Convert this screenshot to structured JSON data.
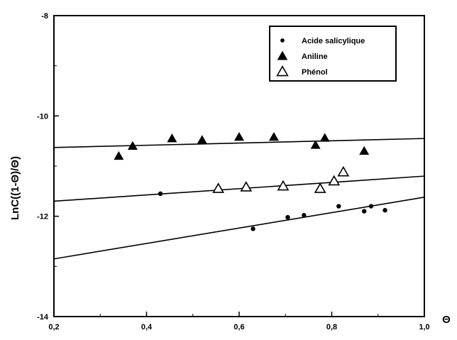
{
  "chart_data": {
    "type": "scatter",
    "xlabel": "Θ",
    "ylabel": "LnC((1-Θ)/Θ)",
    "xlim": [
      0.2,
      1.0
    ],
    "ylim": [
      -14,
      -8
    ],
    "xticks": [
      0.2,
      0.4,
      0.6,
      0.8,
      1.0
    ],
    "xtick_labels": [
      "0,2",
      "0,4",
      "0,6",
      "0,8",
      "1,0"
    ],
    "yticks": [
      -14,
      -12,
      -10,
      -8
    ],
    "ytick_labels": [
      "-14",
      "-12",
      "-10",
      "-8"
    ],
    "grid": false,
    "legend_position": "top-right",
    "series": [
      {
        "name": "Acide salicylique",
        "marker": "filled-circle",
        "points": [
          {
            "x": 0.43,
            "y": -11.55
          },
          {
            "x": 0.63,
            "y": -12.25
          },
          {
            "x": 0.705,
            "y": -12.02
          },
          {
            "x": 0.74,
            "y": -11.98
          },
          {
            "x": 0.815,
            "y": -11.8
          },
          {
            "x": 0.87,
            "y": -11.9
          },
          {
            "x": 0.885,
            "y": -11.8
          },
          {
            "x": 0.915,
            "y": -11.88
          }
        ],
        "fit": {
          "x0": 0.2,
          "y0": -12.85,
          "x1": 1.0,
          "y1": -11.62
        }
      },
      {
        "name": "Aniline",
        "marker": "filled-triangle",
        "points": [
          {
            "x": 0.34,
            "y": -10.8
          },
          {
            "x": 0.37,
            "y": -10.6
          },
          {
            "x": 0.455,
            "y": -10.45
          },
          {
            "x": 0.52,
            "y": -10.48
          },
          {
            "x": 0.6,
            "y": -10.42
          },
          {
            "x": 0.675,
            "y": -10.42
          },
          {
            "x": 0.765,
            "y": -10.58
          },
          {
            "x": 0.785,
            "y": -10.44
          },
          {
            "x": 0.87,
            "y": -10.7
          }
        ],
        "fit": {
          "x0": 0.2,
          "y0": -10.63,
          "x1": 1.0,
          "y1": -10.45
        }
      },
      {
        "name": "Phénol",
        "marker": "open-triangle",
        "points": [
          {
            "x": 0.555,
            "y": -11.45
          },
          {
            "x": 0.615,
            "y": -11.42
          },
          {
            "x": 0.695,
            "y": -11.4
          },
          {
            "x": 0.775,
            "y": -11.45
          },
          {
            "x": 0.805,
            "y": -11.3
          },
          {
            "x": 0.825,
            "y": -11.12
          }
        ],
        "fit": {
          "x0": 0.2,
          "y0": -11.7,
          "x1": 1.0,
          "y1": -11.2
        }
      }
    ]
  }
}
